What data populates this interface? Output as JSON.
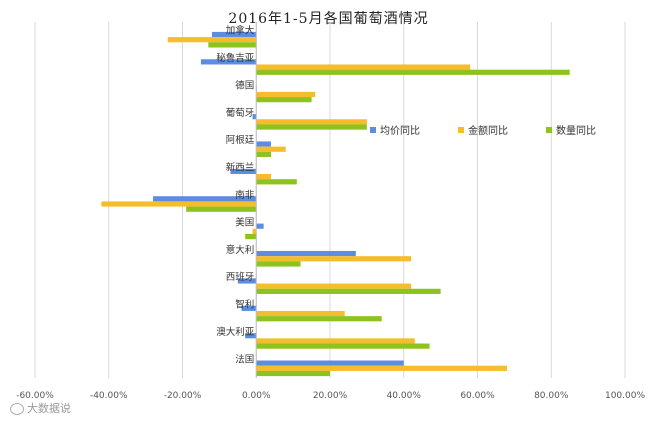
{
  "chart_data": {
    "type": "bar",
    "orientation": "horizontal",
    "title": "2016年1-5月各国葡萄酒情况",
    "categories": [
      "加拿大",
      "秘鲁吉亚",
      "德国",
      "葡萄牙",
      "阿根廷",
      "新西兰",
      "南非",
      "美国",
      "意大利",
      "西班牙",
      "智利",
      "澳大利亚",
      "法国"
    ],
    "series": [
      {
        "name": "均价同比",
        "color": "#5B8DE1",
        "values": [
          -0.12,
          -0.15,
          0.0,
          -0.01,
          0.04,
          -0.07,
          -0.28,
          0.02,
          0.27,
          -0.05,
          -0.04,
          -0.03,
          0.4
        ]
      },
      {
        "name": "金额同比",
        "color": "#F5BD2A",
        "values": [
          -0.24,
          0.58,
          0.16,
          0.3,
          0.08,
          0.04,
          -0.42,
          -0.01,
          0.42,
          0.42,
          0.24,
          0.43,
          0.68
        ]
      },
      {
        "name": "数量同比",
        "color": "#8DC21F",
        "values": [
          -0.13,
          0.85,
          0.15,
          0.3,
          0.04,
          0.11,
          -0.19,
          -0.03,
          0.12,
          0.5,
          0.34,
          0.47,
          0.2
        ]
      }
    ],
    "xlim": [
      -0.6,
      1.0
    ],
    "xticks": [
      "-60.00%",
      "-40.00%",
      "-20.00%",
      "0.00%",
      "20.00%",
      "40.00%",
      "60.00%",
      "80.00%",
      "100.00%"
    ],
    "grid": true,
    "legend_position": "right"
  },
  "watermark": "大数据说"
}
